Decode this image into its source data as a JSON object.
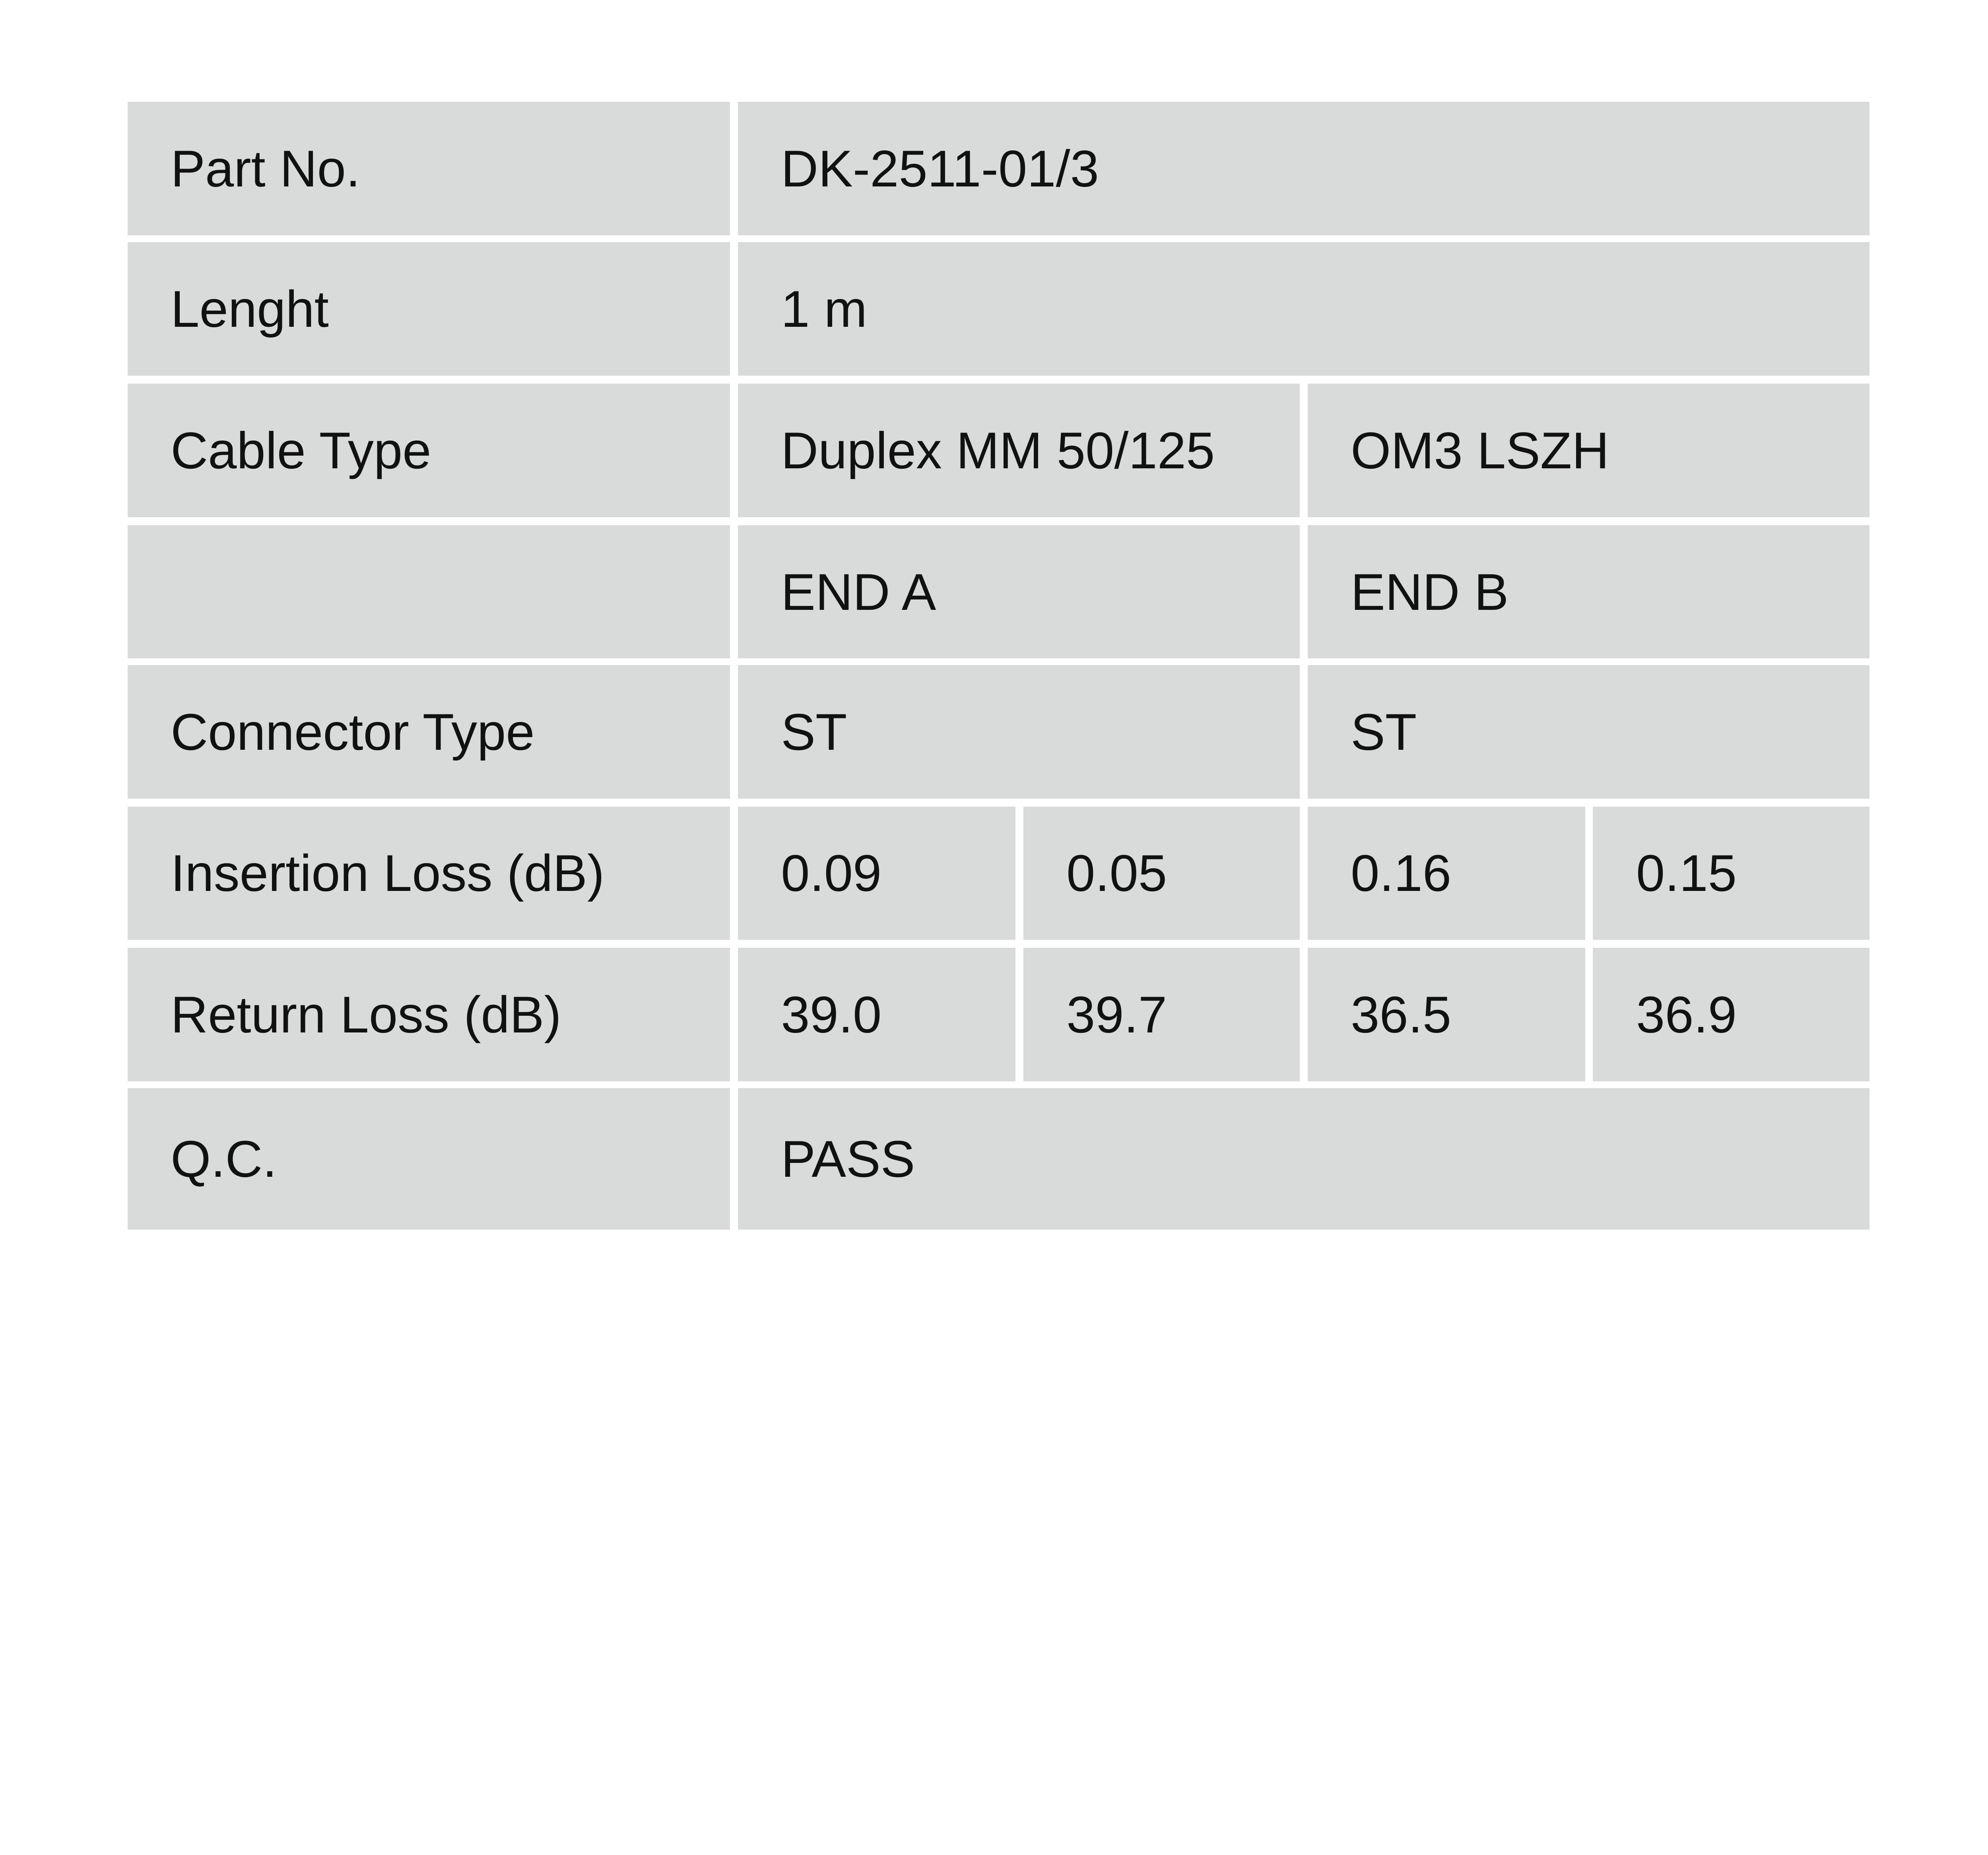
{
  "table": {
    "part_no": {
      "label": "Part No.",
      "value": "DK-2511-01/3"
    },
    "length": {
      "label": "Lenght",
      "value": "1 m"
    },
    "cable_type": {
      "label": "Cable Type",
      "value_a": "Duplex MM 50/125",
      "value_b": "OM3 LSZH"
    },
    "ends": {
      "label": "",
      "end_a": "END A",
      "end_b": "END B"
    },
    "connector_type": {
      "label": "Connector Type",
      "end_a": "ST",
      "end_b": "ST"
    },
    "insertion_loss": {
      "label": "Insertion Loss (dB)",
      "values": [
        "0.09",
        "0.05",
        "0.16",
        "0.15"
      ]
    },
    "return_loss": {
      "label": "Return Loss (dB)",
      "values": [
        "39.0",
        "39.7",
        "36.5",
        "36.9"
      ]
    },
    "qc": {
      "label": "Q.C.",
      "value": "PASS"
    }
  }
}
